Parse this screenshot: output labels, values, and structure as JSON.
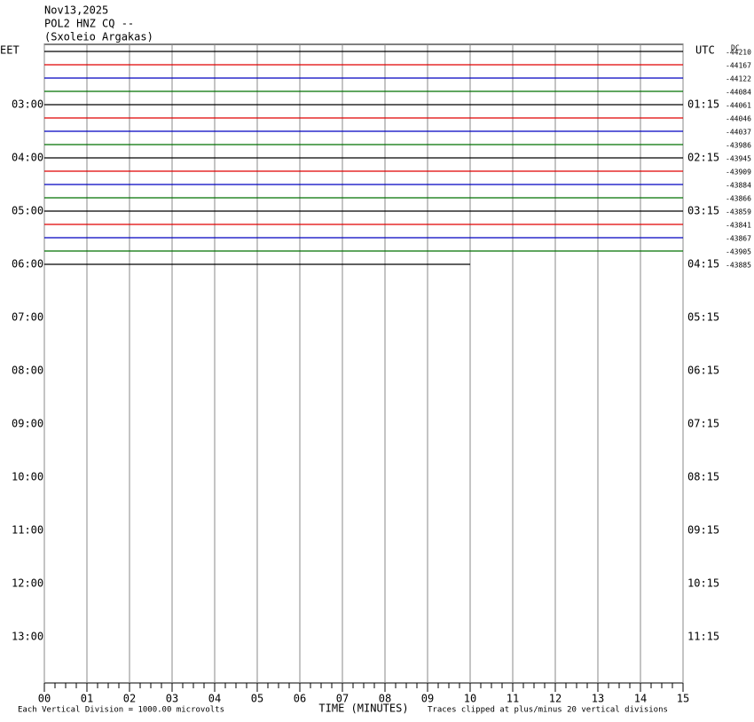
{
  "chart_data": {
    "type": "helicorder",
    "title_lines": [
      "Nov13,2025",
      "POL2 HNZ CQ --",
      "(Sxoleio Argakas)"
    ],
    "left_zone": "EET",
    "right_zone": "UTC",
    "dc_header": "DC",
    "left_labels": [
      "03:00",
      "04:00",
      "05:00",
      "06:00",
      "07:00",
      "08:00",
      "09:00",
      "10:00",
      "11:00",
      "12:00",
      "13:00"
    ],
    "right_labels": [
      "01:15",
      "02:15",
      "03:15",
      "04:15",
      "05:15",
      "06:15",
      "07:15",
      "08:15",
      "09:15",
      "10:15",
      "11:15"
    ],
    "xlabel": "TIME (MINUTES)",
    "scale_note": "Each Vertical Division = 1000.00 microvolts",
    "clip_note": "Traces clipped at plus/minus 20 vertical divisions",
    "xlim": [
      0,
      15
    ],
    "xticks": [
      {
        "value": 0,
        "label": "00"
      },
      {
        "value": 1,
        "label": "01"
      },
      {
        "value": 2,
        "label": "02"
      },
      {
        "value": 3,
        "label": "03"
      },
      {
        "value": 4,
        "label": "04"
      },
      {
        "value": 5,
        "label": "05"
      },
      {
        "value": 6,
        "label": "06"
      },
      {
        "value": 7,
        "label": "07"
      },
      {
        "value": 8,
        "label": "08"
      },
      {
        "value": 9,
        "label": "09"
      },
      10,
      11,
      12,
      13,
      14,
      15
    ],
    "last_trace_end": 10,
    "traces": [
      {
        "color": "#000000",
        "dc": -44210
      },
      {
        "color": "#e00000",
        "dc": -44167
      },
      {
        "color": "#0000c0",
        "dc": -44122
      },
      {
        "color": "#007000",
        "dc": -44084
      },
      {
        "color": "#000000",
        "dc": -44061
      },
      {
        "color": "#e00000",
        "dc": -44046
      },
      {
        "color": "#0000c0",
        "dc": -44037
      },
      {
        "color": "#007000",
        "dc": -43986
      },
      {
        "color": "#000000",
        "dc": -43945
      },
      {
        "color": "#e00000",
        "dc": -43909
      },
      {
        "color": "#0000c0",
        "dc": -43884
      },
      {
        "color": "#007000",
        "dc": -43866
      },
      {
        "color": "#000000",
        "dc": -43859
      },
      {
        "color": "#e00000",
        "dc": -43841
      },
      {
        "color": "#0000c0",
        "dc": -43867
      },
      {
        "color": "#007000",
        "dc": -43905
      },
      {
        "color": "#000000",
        "dc": -43885
      }
    ]
  }
}
